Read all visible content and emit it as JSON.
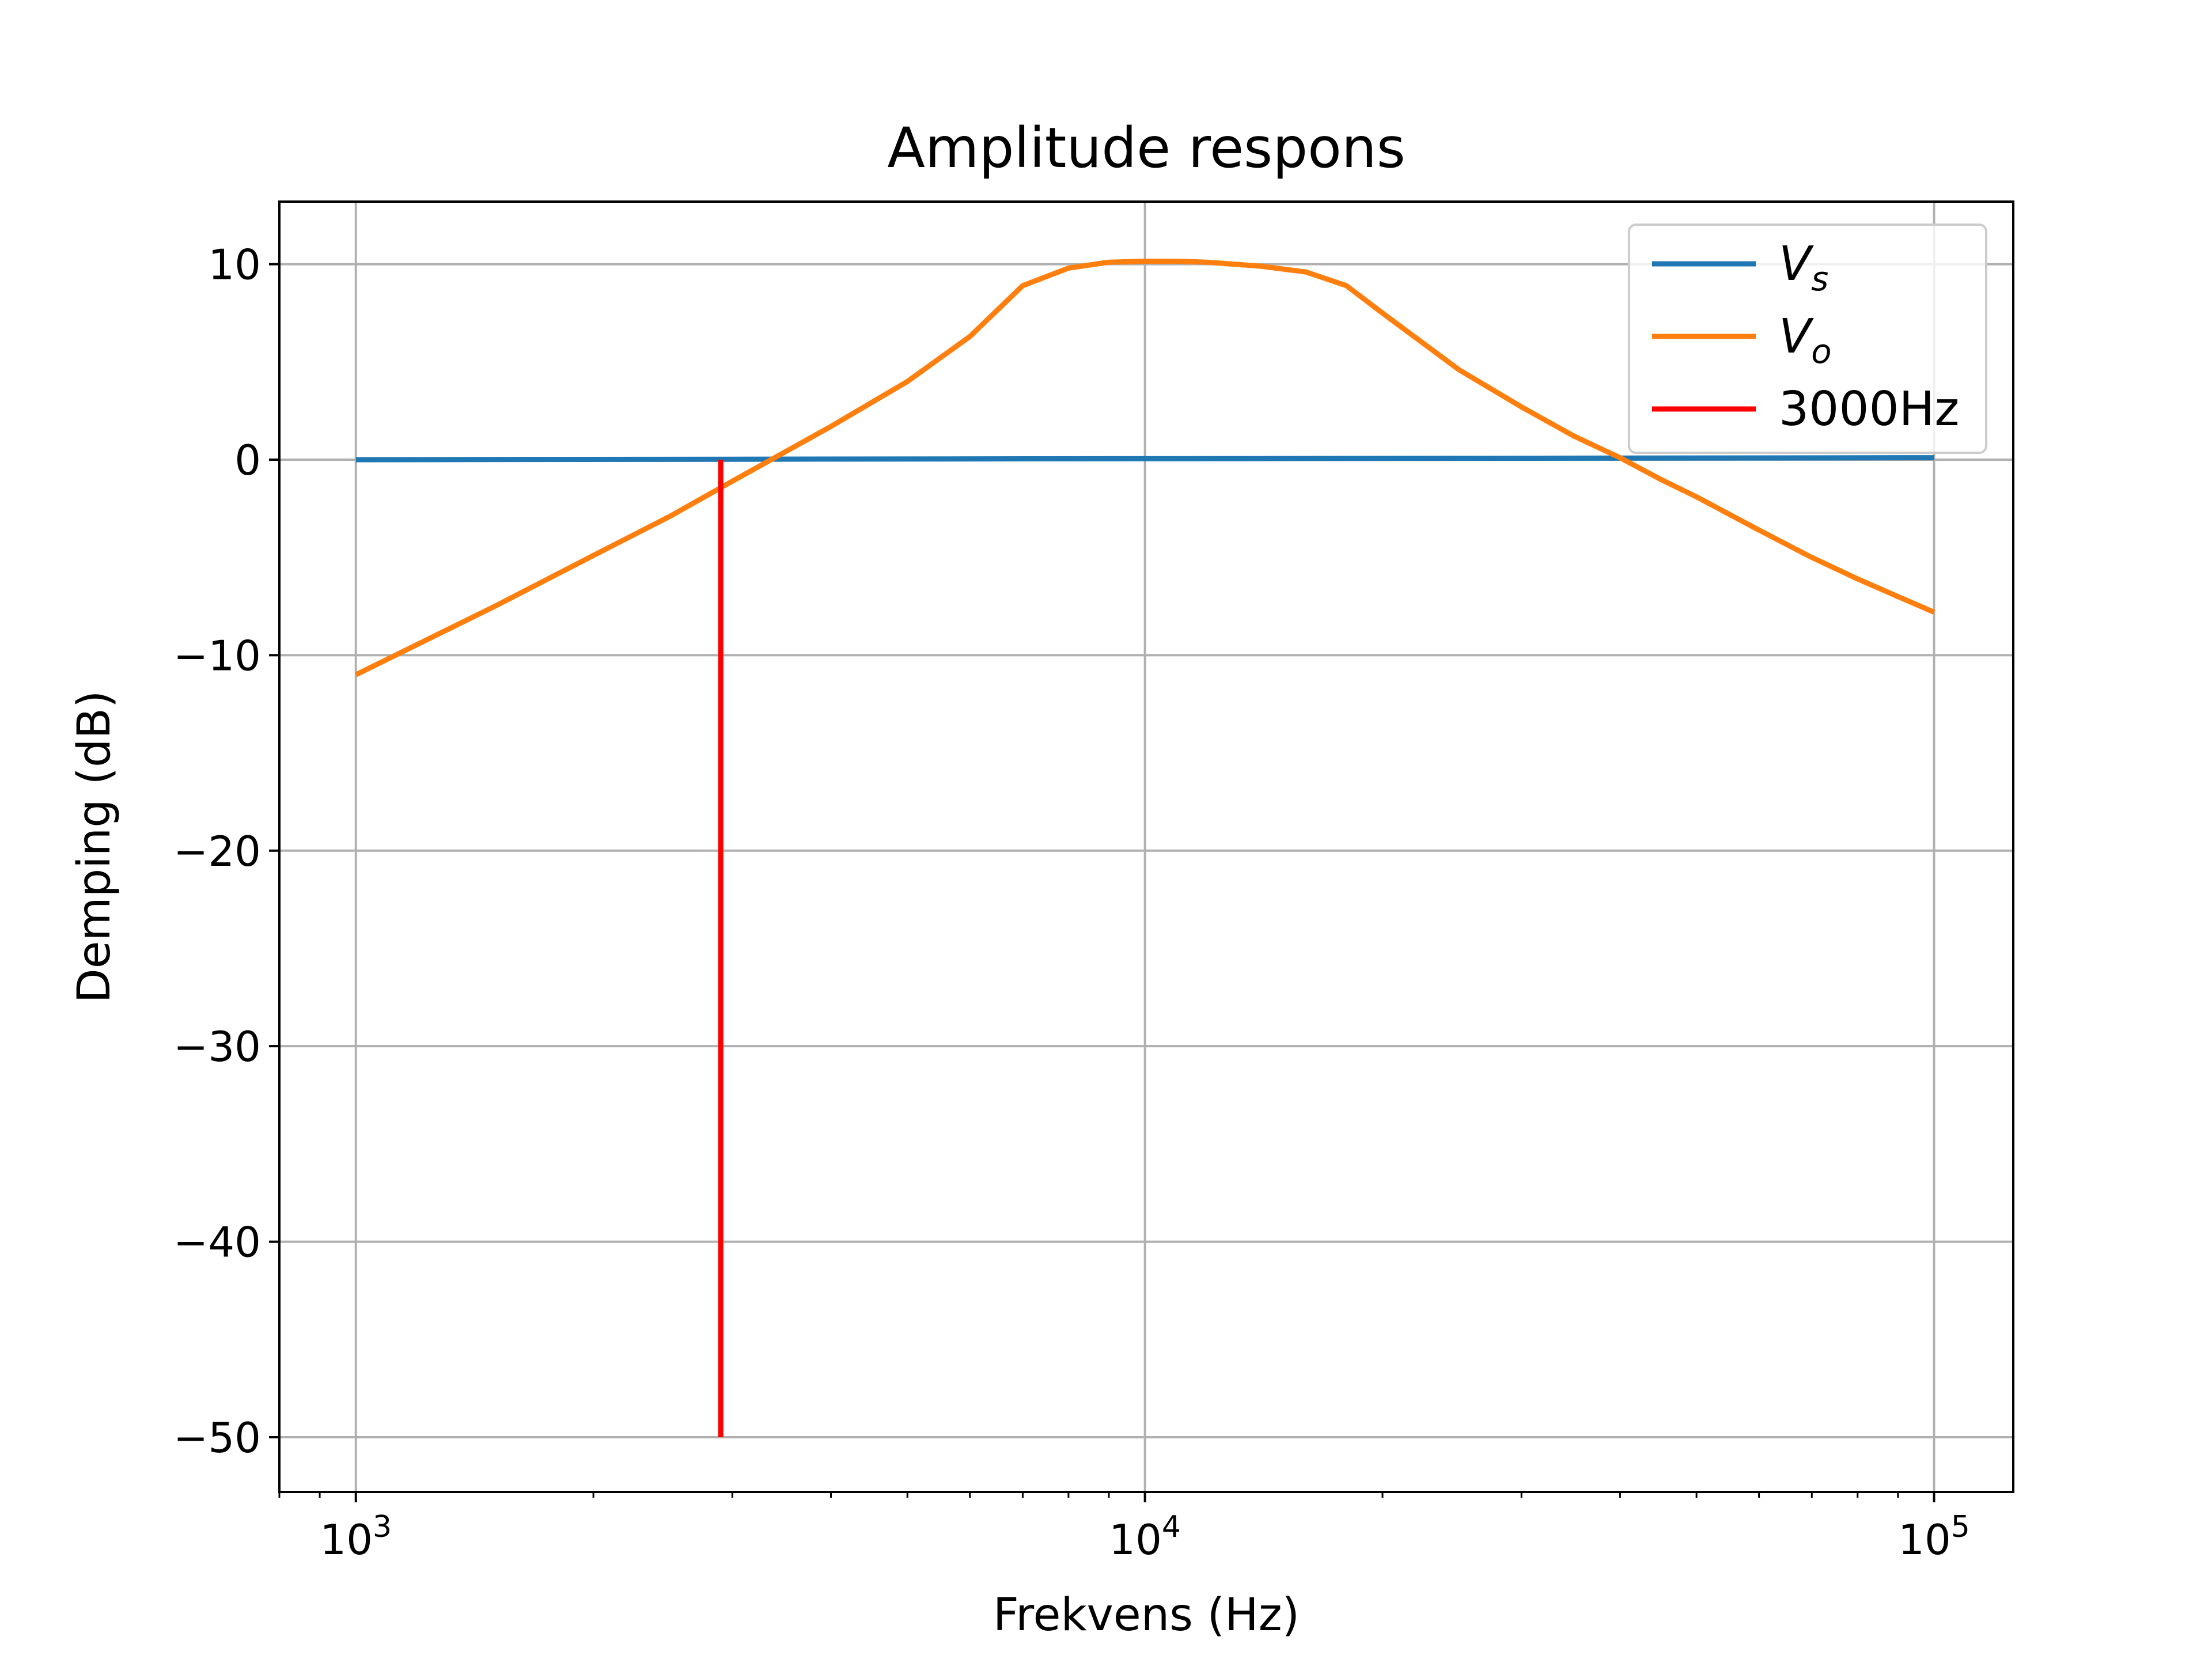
{
  "chart_data": {
    "type": "line",
    "title": "Amplitude respons",
    "xlabel": "Frekvens (Hz)",
    "ylabel": "Demping (dB)",
    "xscale": "log",
    "xlim": [
      800,
      126000
    ],
    "ylim": [
      -52.8,
      13.2
    ],
    "grid": true,
    "legend_position": "top-right",
    "x_ticks": [
      {
        "value": 1000,
        "base": "10",
        "exp": "3"
      },
      {
        "value": 10000,
        "base": "10",
        "exp": "4"
      },
      {
        "value": 100000,
        "base": "10",
        "exp": "5"
      }
    ],
    "y_ticks": [
      {
        "value": 10,
        "label": "10"
      },
      {
        "value": 0,
        "label": "0"
      },
      {
        "value": -10,
        "label": "−10"
      },
      {
        "value": -20,
        "label": "−20"
      },
      {
        "value": -30,
        "label": "−30"
      },
      {
        "value": -40,
        "label": "−40"
      },
      {
        "value": -50,
        "label": "−50"
      }
    ],
    "series": [
      {
        "name": "V",
        "subscript": "s",
        "color": "#1f77b4",
        "x": [
          1000,
          10000,
          100000
        ],
        "y": [
          0,
          0.05,
          0.1
        ]
      },
      {
        "name": "V",
        "subscript": "o",
        "color": "#ff7f0e",
        "x": [
          1000,
          1500,
          2000,
          2500,
          3000,
          3500,
          4000,
          5000,
          6000,
          7000,
          8000,
          9000,
          10000,
          11000,
          12000,
          14000,
          16000,
          18000,
          20000,
          25000,
          30000,
          35000,
          40000,
          45000,
          50000,
          60000,
          70000,
          80000,
          90000,
          100000
        ],
        "y": [
          -11,
          -7.5,
          -4.9,
          -2.9,
          -1.1,
          0.4,
          1.7,
          4.0,
          6.3,
          8.9,
          9.8,
          10.1,
          10.15,
          10.15,
          10.1,
          9.9,
          9.6,
          8.9,
          7.5,
          4.6,
          2.7,
          1.2,
          0.1,
          -1.0,
          -1.9,
          -3.6,
          -5.0,
          -6.1,
          -7.0,
          -7.8
        ]
      },
      {
        "name": "3000Hz",
        "color": "#ff0000",
        "x": [
          2900,
          2900
        ],
        "y": [
          0,
          -50
        ]
      }
    ]
  }
}
